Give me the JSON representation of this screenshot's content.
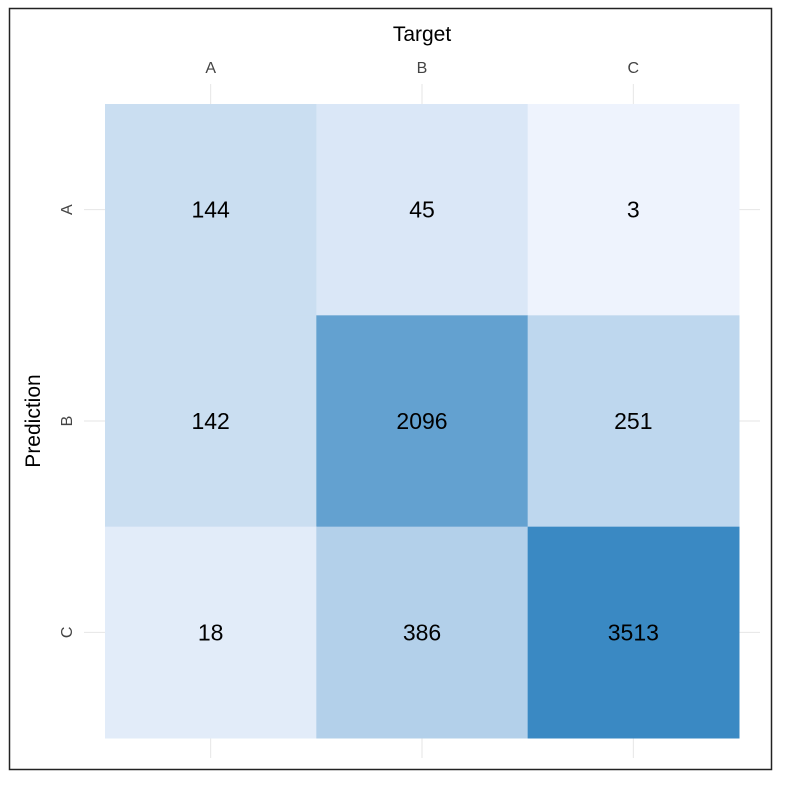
{
  "chart_data": {
    "type": "heatmap",
    "title": "",
    "xlabel": "Target",
    "ylabel": "Prediction",
    "x_categories": [
      "A",
      "B",
      "C"
    ],
    "y_categories": [
      "A",
      "B",
      "C"
    ],
    "x_axis_position": "top",
    "grid": true,
    "legend": "none",
    "values": [
      [
        144,
        45,
        3
      ],
      [
        142,
        2096,
        251
      ],
      [
        18,
        386,
        3513
      ]
    ],
    "colors": {
      "low": "#eef3fd",
      "high": "#3a89c3",
      "text": "#000000",
      "tick_text": "#444444",
      "grid": "#e6e6e6",
      "border": "#222222"
    }
  }
}
